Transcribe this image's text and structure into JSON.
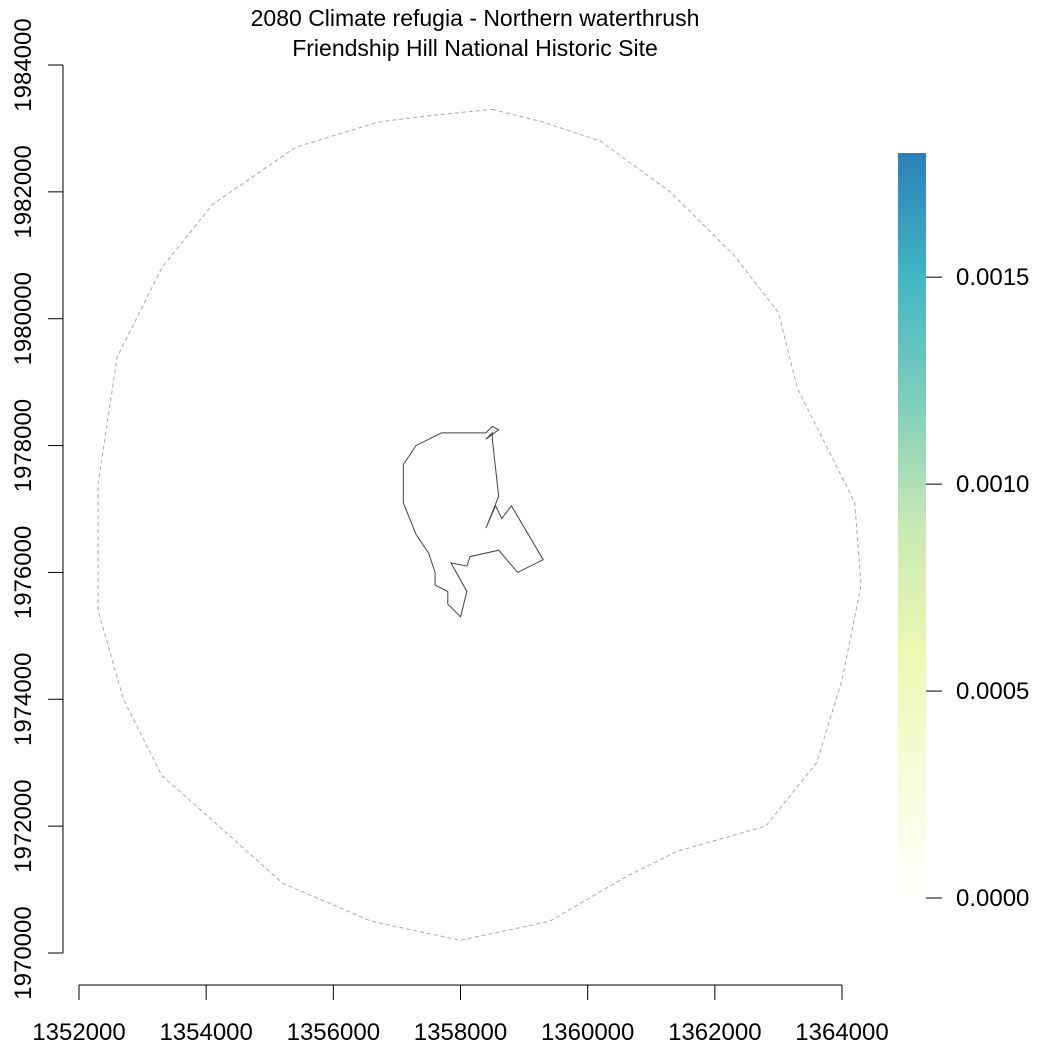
{
  "title": {
    "line1": "2080 Climate refugia - Northern waterthrush",
    "line2": "Friendship Hill National Historic Site"
  },
  "chart_data": {
    "type": "map",
    "x_axis": {
      "range": [
        1352000,
        1364000
      ],
      "ticks": [
        1352000,
        1354000,
        1356000,
        1358000,
        1360000,
        1362000,
        1364000
      ],
      "tick_labels": [
        "1352000",
        "1354000",
        "1356000",
        "1358000",
        "1360000",
        "1362000",
        "1364000"
      ]
    },
    "y_axis": {
      "range": [
        1970000,
        1984000
      ],
      "ticks": [
        1970000,
        1972000,
        1974000,
        1976000,
        1978000,
        1980000,
        1982000,
        1984000
      ],
      "tick_labels": [
        "1970000",
        "1972000",
        "1974000",
        "1976000",
        "1978000",
        "1980000",
        "1982000",
        "1984000"
      ]
    },
    "legend": {
      "type": "colorbar",
      "placement": "right",
      "range": [
        0,
        0.0018
      ],
      "ticks": [
        0.0,
        0.0005,
        0.001,
        0.0015
      ],
      "tick_labels": [
        "0.0000",
        "0.0005",
        "0.0010",
        "0.0015"
      ],
      "colors": [
        "#ffffff",
        "#f7fcd8",
        "#edf8b1",
        "#c7e9b4",
        "#7fcdbb",
        "#41b6c4",
        "#2c7fb8"
      ]
    },
    "buffer_boundary": {
      "style": "dashed",
      "color": "#aaaaaa",
      "points": [
        [
          1358500,
          1983300
        ],
        [
          1359300,
          1983100
        ],
        [
          1360200,
          1982800
        ],
        [
          1361300,
          1982000
        ],
        [
          1362300,
          1981000
        ],
        [
          1363000,
          1980100
        ],
        [
          1363300,
          1978900
        ],
        [
          1363800,
          1977900
        ],
        [
          1364200,
          1977100
        ],
        [
          1364300,
          1975800
        ],
        [
          1364000,
          1974300
        ],
        [
          1363600,
          1973000
        ],
        [
          1362800,
          1972000
        ],
        [
          1361400,
          1971600
        ],
        [
          1360600,
          1971200
        ],
        [
          1359400,
          1970500
        ],
        [
          1358000,
          1970200
        ],
        [
          1356600,
          1970500
        ],
        [
          1355200,
          1971100
        ],
        [
          1354200,
          1972000
        ],
        [
          1353300,
          1972800
        ],
        [
          1352700,
          1974000
        ],
        [
          1352300,
          1975400
        ],
        [
          1352300,
          1977400
        ],
        [
          1352600,
          1979400
        ],
        [
          1353300,
          1980800
        ],
        [
          1354100,
          1981800
        ],
        [
          1355400,
          1982700
        ],
        [
          1356700,
          1983100
        ],
        [
          1357500,
          1983200
        ]
      ]
    },
    "park_boundary": {
      "style": "solid",
      "color": "#444444",
      "points": [
        [
          1358500,
          1978200
        ],
        [
          1358400,
          1978100
        ],
        [
          1358600,
          1978250
        ],
        [
          1358500,
          1978300
        ],
        [
          1358400,
          1978200
        ],
        [
          1357700,
          1978200
        ],
        [
          1357300,
          1978000
        ],
        [
          1357100,
          1977700
        ],
        [
          1357100,
          1977100
        ],
        [
          1357300,
          1976600
        ],
        [
          1357500,
          1976300
        ],
        [
          1357600,
          1976000
        ],
        [
          1357600,
          1975800
        ],
        [
          1357800,
          1975700
        ],
        [
          1357800,
          1975500
        ],
        [
          1358000,
          1975300
        ],
        [
          1358100,
          1975700
        ],
        [
          1357850,
          1976150
        ],
        [
          1358100,
          1976100
        ],
        [
          1358150,
          1976250
        ],
        [
          1358600,
          1976350
        ],
        [
          1358900,
          1976000
        ],
        [
          1359300,
          1976200
        ],
        [
          1358800,
          1977050
        ],
        [
          1358650,
          1976850
        ],
        [
          1358550,
          1977050
        ],
        [
          1358400,
          1976700
        ],
        [
          1358600,
          1977200
        ],
        [
          1358500,
          1978100
        ]
      ]
    }
  }
}
